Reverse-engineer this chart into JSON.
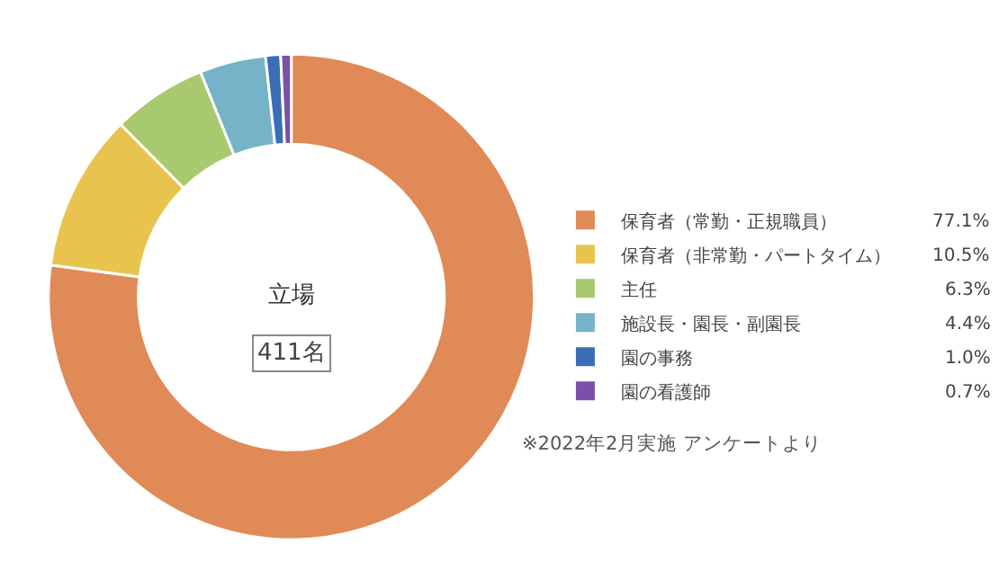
{
  "chart_data": {
    "type": "donut",
    "title": "立場",
    "categories": [
      "保育者（常勤・正規職員）",
      "保育者（非常勤・パートタイム）",
      "主任",
      "施設長・園長・副園長",
      "園の事務",
      "園の看護師"
    ],
    "values": [
      77.1,
      10.5,
      6.3,
      4.4,
      1.0,
      0.7
    ],
    "colors": [
      "#e08a58",
      "#e8c44e",
      "#a8c96d",
      "#76b2c8",
      "#3a6db5",
      "#7a50a8"
    ],
    "value_labels": [
      "77.1%",
      "10.5%",
      "6.3%",
      "4.4%",
      "1.0%",
      "0.7%"
    ],
    "legend": "right",
    "annotations": [
      "411名",
      "※2022年2月実施 アンケートより"
    ]
  }
}
